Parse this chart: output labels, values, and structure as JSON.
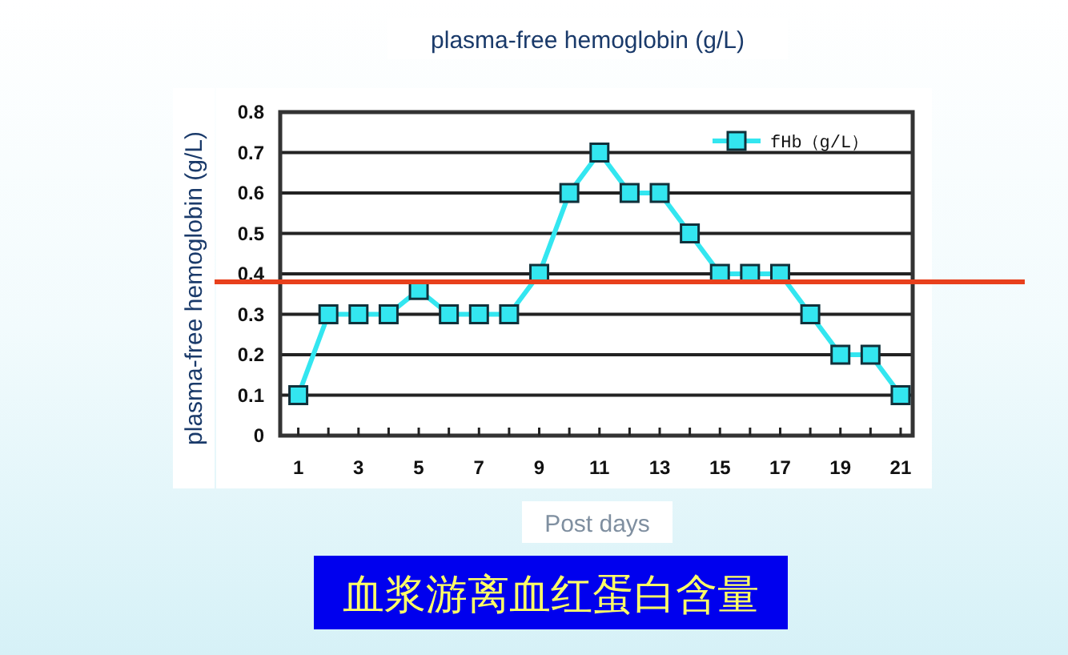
{
  "chart_data": {
    "type": "line",
    "title": "plasma-free hemoglobin (g/L)",
    "ylabel": "plasma-free hemoglobin (g/L)",
    "xlabel": "Post days",
    "annotations": [
      "血浆游离血红蛋白含量"
    ],
    "x": [
      1,
      2,
      3,
      4,
      5,
      6,
      7,
      8,
      9,
      10,
      11,
      12,
      13,
      14,
      15,
      16,
      17,
      18,
      19,
      20,
      21
    ],
    "series": [
      {
        "name": "fHb（g/L）",
        "color": "#33e6f0",
        "values": [
          0.1,
          0.3,
          0.3,
          0.3,
          0.36,
          0.3,
          0.3,
          0.3,
          0.4,
          0.6,
          0.7,
          0.6,
          0.6,
          0.5,
          0.4,
          0.4,
          0.4,
          0.3,
          0.2,
          0.2,
          0.1
        ]
      }
    ],
    "xlim": [
      0.4,
      21.4
    ],
    "xticks": [
      1,
      {
        "value": 2,
        "label": null
      },
      3,
      {
        "value": 4,
        "label": null
      },
      5,
      {
        "value": 6,
        "label": null
      },
      7,
      {
        "value": 8,
        "label": null
      },
      9,
      {
        "value": 10,
        "label": null
      },
      11,
      {
        "value": 12,
        "label": null
      },
      13,
      {
        "value": 14,
        "label": null
      },
      15,
      {
        "value": 16,
        "label": null
      },
      17,
      {
        "value": 18,
        "label": null
      },
      19,
      {
        "value": 20,
        "label": null
      },
      21
    ],
    "ylim": [
      0,
      0.8
    ],
    "yticks": [
      0,
      0.1,
      0.2,
      0.3,
      0.4,
      0.5,
      0.6,
      0.7,
      0.8
    ],
    "ref_lines": [
      {
        "axis": "y",
        "value": 0.38,
        "color": "#e8401c"
      }
    ],
    "grid": "y",
    "legend": "top right",
    "marker": "square",
    "line_style": "solid"
  }
}
